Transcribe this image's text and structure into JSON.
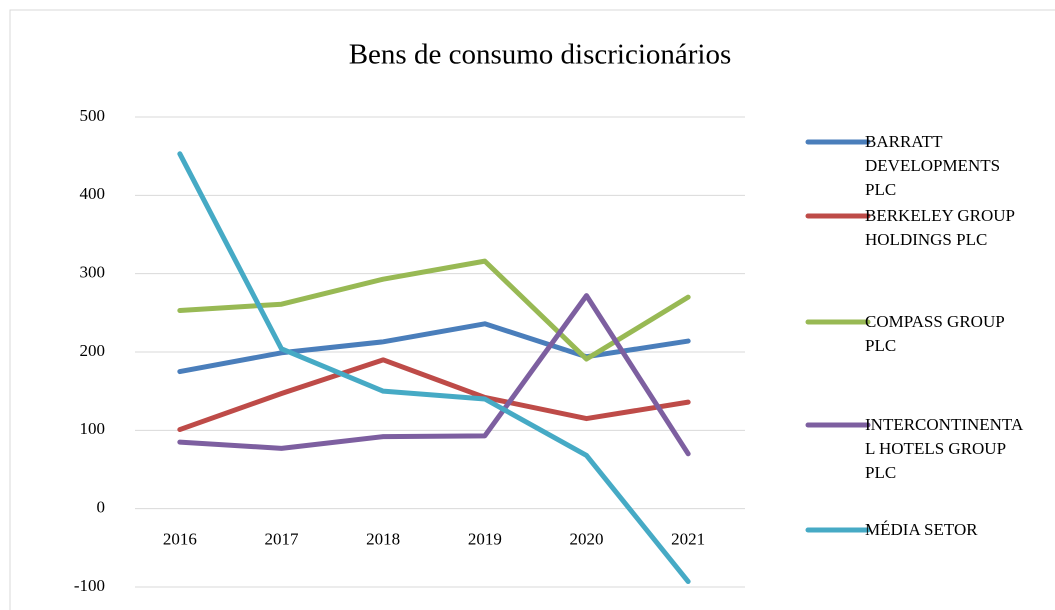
{
  "chart_data": {
    "type": "line",
    "title": "Bens de consumo discricionários",
    "categories": [
      "2016",
      "2017",
      "2018",
      "2019",
      "2020",
      "2021"
    ],
    "series": [
      {
        "name": "BARRATT DEVELOPMENTS PLC",
        "color": "#4a7ebb",
        "values": [
          175,
          199,
          213,
          236,
          194,
          214
        ]
      },
      {
        "name": "BERKELEY GROUP HOLDINGS PLC",
        "color": "#be4b48",
        "values": [
          101,
          147,
          190,
          142,
          115,
          136
        ]
      },
      {
        "name": "COMPASS GROUP PLC",
        "color": "#98b954",
        "values": [
          253,
          261,
          293,
          316,
          191,
          270
        ]
      },
      {
        "name": "INTERCONTINENTAL HOTELS GROUP PLC",
        "color": "#7d5fa0",
        "values": [
          85,
          77,
          92,
          93,
          272,
          70
        ]
      },
      {
        "name": "MÉDIA SETOR",
        "color": "#46aac5",
        "values": [
          453,
          204,
          150,
          140,
          68,
          -93
        ]
      }
    ],
    "ylim": [
      -100,
      500
    ],
    "yticks": [
      -100,
      0,
      100,
      200,
      300,
      400,
      500
    ],
    "grid": true,
    "legend": "right"
  }
}
